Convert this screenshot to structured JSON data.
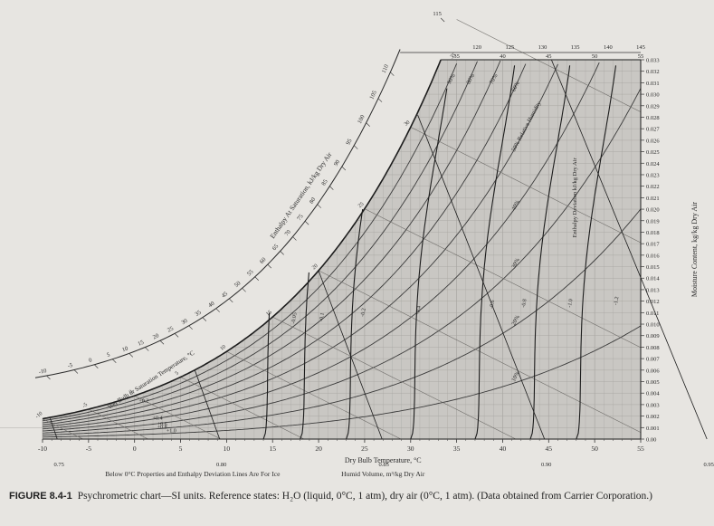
{
  "chart_data": {
    "type": "line",
    "title": "",
    "xlabel": "Dry Bulb Temperature, °C",
    "ylabel": "Moisture Content, kg/kg Dry Air",
    "xlim": [
      -10,
      55
    ],
    "ylim": [
      0,
      0.033
    ],
    "x_ticks": [
      -10,
      -5,
      0,
      5,
      10,
      15,
      20,
      25,
      30,
      35,
      40,
      45,
      50,
      55
    ],
    "y_ticks": [
      "0.00",
      "0.001",
      "0.002",
      "0.003",
      "0.004",
      "0.005",
      "0.006",
      "0.007",
      "0.008",
      "0.009",
      "0.010",
      "0.011",
      "0.012",
      "0.013",
      "0.014",
      "0.015",
      "0.016",
      "0.017",
      "0.018",
      "0.019",
      "0.020",
      "0.021",
      "0.022",
      "0.023",
      "0.024",
      "0.025",
      "0.026",
      "0.027",
      "0.028",
      "0.029",
      "0.030",
      "0.031",
      "0.032",
      "0.033"
    ],
    "relative_humidity_labels": [
      "90%",
      "80%",
      "70%",
      "60%",
      "50% Relative Humidity",
      "40%",
      "30%",
      "20%",
      "10%"
    ],
    "relative_humidity_values": [
      0.9,
      0.8,
      0.7,
      0.6,
      0.5,
      0.4,
      0.3,
      0.2,
      0.1
    ],
    "wet_bulb_label": "Wet Bulb or Saturation Temperature, °C",
    "wet_bulb_values": [
      -10,
      -5,
      0,
      5,
      10,
      15,
      20,
      25,
      30,
      35
    ],
    "enthalpy_label": "Enthalpy At Saturation, kJ/kg Dry Air",
    "enthalpy_left_ticks": [
      "-10",
      "-5",
      "0",
      "5",
      "10",
      "15",
      "20",
      "25",
      "30",
      "35",
      "40",
      "45",
      "50",
      "55",
      "60",
      "65",
      "70",
      "75",
      "80",
      "85",
      "90",
      "95",
      "100",
      "105",
      "110",
      "115"
    ],
    "enthalpy_top_ticks": [
      "120",
      "125",
      "130",
      "135",
      "140",
      "145"
    ],
    "top_temperature_ticks": [
      "35",
      "40",
      "45",
      "50",
      "55"
    ],
    "enthalpy_deviation_label": "Enthalpy Deviation kJ/kg Dry Air",
    "enthalpy_deviation_values": [
      "+0.2",
      "+0.4",
      "+0.6",
      "+0.8",
      "+1.0",
      "-0.05",
      "-0.1",
      "-0.2",
      "-0.4",
      "-0.6",
      "-0.8",
      "-1.0",
      "-1.2"
    ],
    "humid_volume_label": "Humid Volume, m³/kg Dry Air",
    "humid_volume_ticks": [
      "0.75",
      "0.80",
      "0.85",
      "0.90",
      "0.95"
    ],
    "humid_volume_values": [
      0.75,
      0.8,
      0.85,
      0.9,
      0.95
    ],
    "note": "Below 0°C Properties and Enthalpy Deviation Lines Are For Ice"
  },
  "caption": {
    "figure": "FIGURE 8.4-1",
    "text": "Psychrometric chart—SI units. Reference states: H₂O (liquid, 0°C, 1 atm), dry air (0°C, 1 atm). (Data obtained from Carrier Corporation.)"
  },
  "colors": {
    "background": "#e7e5e1",
    "chart_fill": "#c9c7c3",
    "grid": "#a8a6a2",
    "curve": "#3b3b3b",
    "bold_curve": "#1c1c1c"
  }
}
